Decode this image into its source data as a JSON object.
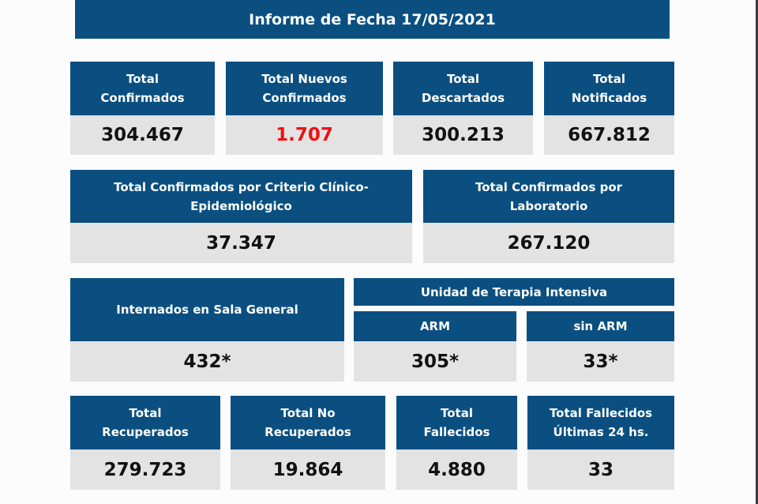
{
  "title": "Informe de Fecha 17/05/2021",
  "colors": {
    "header": "#0a4f80",
    "value_bg": "#e3e3e3",
    "highlight": "#ee1111"
  },
  "row1": [
    {
      "label": "Total Confirmados",
      "value": "304.467"
    },
    {
      "label": "Total Nuevos Confirmados",
      "value": "1.707"
    },
    {
      "label": "Total Descartados",
      "value": "300.213"
    },
    {
      "label": "Total Notificados",
      "value": "667.812"
    }
  ],
  "row2": [
    {
      "label": "Total Confirmados por Criterio Clínico-Epidemiológico",
      "value": "37.347"
    },
    {
      "label": "Total Confirmados por Laboratorio",
      "value": "267.120"
    }
  ],
  "row3": {
    "sala": {
      "label": "Internados en Sala General",
      "value": "432*"
    },
    "uti_label": "Unidad de Terapia Intensiva",
    "arm": {
      "label": "ARM",
      "value": "305*"
    },
    "sin_arm": {
      "label": "sin ARM",
      "value": "33*"
    }
  },
  "row4": [
    {
      "label": "Total Recuperados",
      "value": "279.723"
    },
    {
      "label": "Total No Recuperados",
      "value": "19.864"
    },
    {
      "label": "Total Fallecidos",
      "value": "4.880"
    },
    {
      "label": "Total Fallecidos Últimas 24 hs.",
      "value": "33"
    }
  ]
}
